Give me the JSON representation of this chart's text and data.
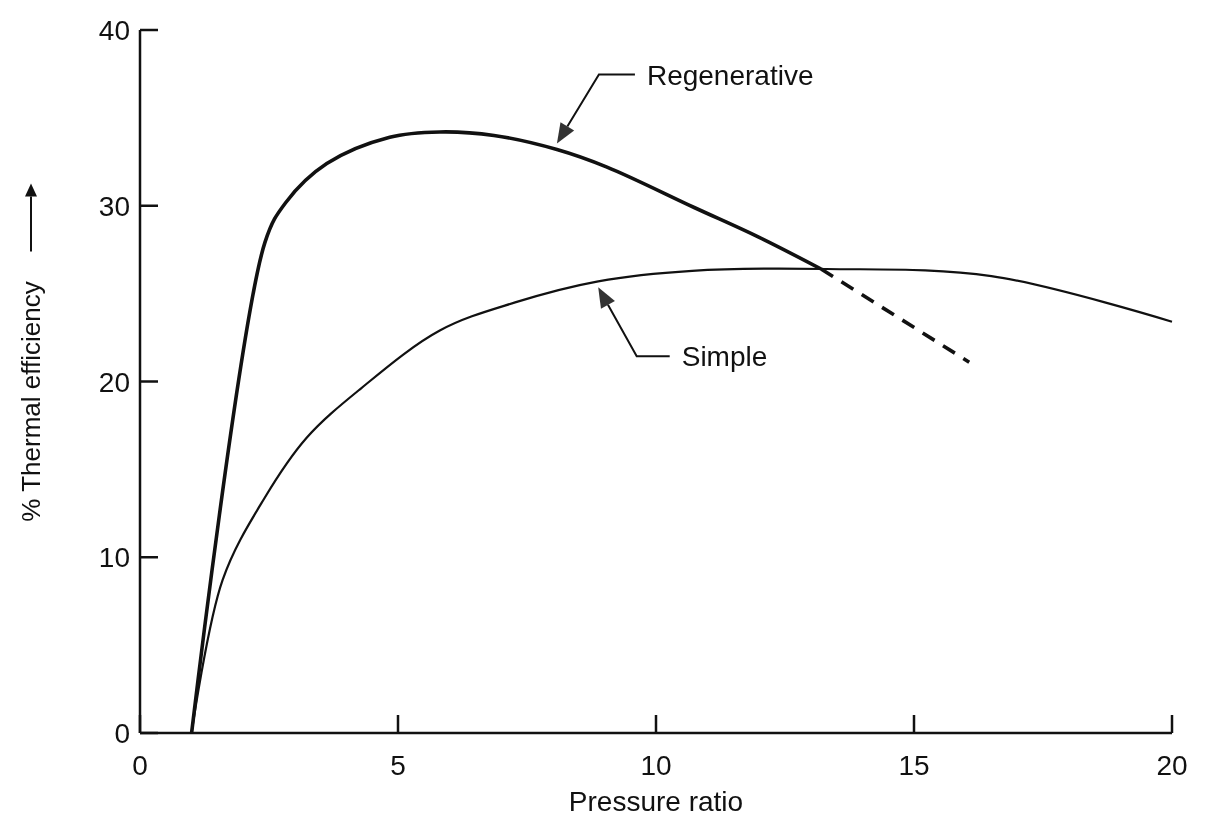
{
  "chart_data": {
    "type": "line",
    "xlabel": "Pressure ratio",
    "ylabel": "% Thermal efficiency",
    "xlim": [
      0,
      20
    ],
    "ylim": [
      0,
      40
    ],
    "xticks": [
      0,
      5,
      10,
      15,
      20
    ],
    "yticks": [
      0,
      10,
      20,
      30,
      40
    ],
    "grid": false,
    "marker": "none",
    "series": [
      {
        "name": "Regenerative",
        "color": "#111111",
        "line_style": "solid",
        "x": [
          1,
          2.42,
          2.83,
          3.62,
          4.84,
          5.81,
          6.86,
          8.08,
          9.05,
          10.74,
          12,
          13.2
        ],
        "values": [
          0,
          27.9,
          30.2,
          32.4,
          33.9,
          34.2,
          34,
          33.2,
          32.2,
          29.9,
          28.2,
          26.4
        ]
      },
      {
        "color": "#111111",
        "line_style": "dashed",
        "x": [
          13.2,
          16.07
        ],
        "values": [
          26.4,
          21.1
        ]
      },
      {
        "name": "Simple",
        "color": "#111111",
        "line_style": "solid",
        "x": [
          1,
          1.6,
          2.42,
          3.23,
          4.28,
          5.81,
          7.27,
          8.88,
          10.7,
          13.3,
          16.5,
          20
        ],
        "values": [
          0,
          8.7,
          13.4,
          16.8,
          19.6,
          22.9,
          24.5,
          25.7,
          26.3,
          26.4,
          26,
          23.4
        ]
      }
    ]
  }
}
